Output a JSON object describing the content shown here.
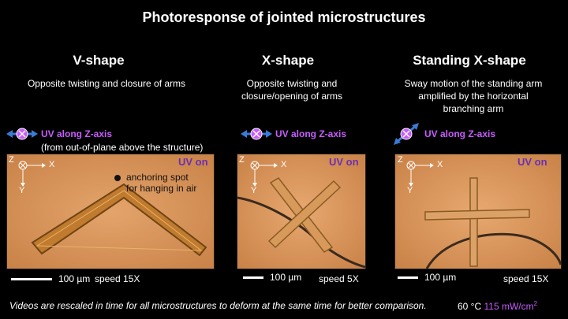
{
  "title": "Photoresponse of jointed microstructures",
  "columns": [
    {
      "heading": "V-shape",
      "description": "Opposite twisting and closure of arms",
      "uv_label": "UV along Z-axis",
      "uv_note": "(from out-of-plane above the structure)",
      "status": "UV on",
      "anchor_note_line1": "anchoring spot",
      "anchor_note_line2": "for hanging in air",
      "scale": "100 µm",
      "speed": "speed 15X"
    },
    {
      "heading": "X-shape",
      "description_line1": "Opposite twisting and",
      "description_line2": "closure/opening of arms",
      "uv_label": "UV along Z-axis",
      "status": "UV on",
      "scale": "100 µm",
      "speed": "speed 5X"
    },
    {
      "heading": "Standing X-shape",
      "description_line1": "Sway motion of the standing arm",
      "description_line2": "amplified by the horizontal",
      "description_line3": "branching arm",
      "uv_label": "UV along Z-axis",
      "status": "UV on",
      "scale": "100 µm",
      "speed": "speed 15X"
    }
  ],
  "axes": {
    "z": "Z",
    "x": "X",
    "y": "Y"
  },
  "footer": "Videos are rescaled in time for all microstructures to deform at the same time for better comparison.",
  "conditions": {
    "temperature": "60 °C",
    "intensity_value": "115 mW/cm",
    "intensity_exp": "2"
  },
  "colors": {
    "uv_label": "#c85cff",
    "uv_on": "#6a2fb3",
    "arrow_blue": "#3a7bd5",
    "panel_bg": "#d7955c"
  }
}
